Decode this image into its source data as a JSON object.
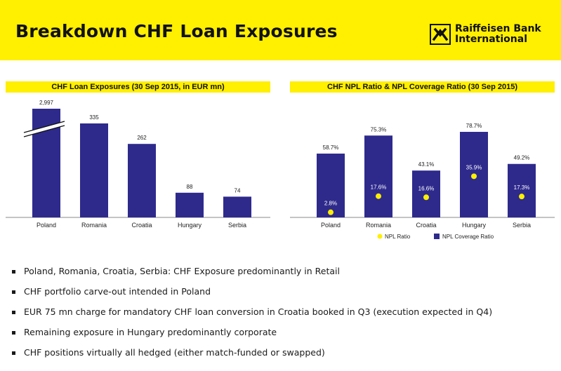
{
  "page": {
    "title": "Breakdown CHF Loan Exposures",
    "logo": {
      "line1": "Raiffeisen Bank",
      "line2": "International"
    }
  },
  "colors": {
    "accent_yellow": "#ffef00",
    "bar_navy": "#2e2a8c",
    "dot_yellow": "#ffef00"
  },
  "chart_data": [
    {
      "type": "bar",
      "title": "CHF Loan Exposures (30 Sep 2015, in EUR mn)",
      "categories": [
        "Poland",
        "Romania",
        "Croatia",
        "Hungary",
        "Serbia"
      ],
      "values": [
        2997,
        335,
        262,
        88,
        74
      ],
      "value_labels": [
        "2,997",
        "335",
        "262",
        "88",
        "74"
      ],
      "axis_break": "Poland",
      "ylabel": "",
      "xlabel": "",
      "grid": false
    },
    {
      "type": "bar",
      "title": "CHF NPL Ratio & NPL Coverage Ratio (30 Sep 2015)",
      "categories": [
        "Poland",
        "Romania",
        "Croatia",
        "Hungary",
        "Serbia"
      ],
      "series": [
        {
          "name": "NPL Coverage Ratio",
          "values": [
            58.7,
            75.3,
            43.1,
            78.7,
            49.2
          ],
          "labels": [
            "58.7%",
            "75.3%",
            "43.1%",
            "78.7%",
            "49.2%"
          ],
          "marker": "bar"
        },
        {
          "name": "NPL Ratio",
          "values": [
            2.8,
            17.6,
            16.6,
            35.9,
            17.3
          ],
          "labels": [
            "2.8%",
            "17.6%",
            "16.6%",
            "35.9%",
            "17.3%"
          ],
          "marker": "dot"
        }
      ],
      "ylim": [
        0,
        100
      ],
      "legend": "bottom",
      "grid": false
    }
  ],
  "bullets": [
    "Poland, Romania, Croatia, Serbia: CHF Exposure predominantly in Retail",
    "CHF portfolio carve-out intended in Poland",
    "EUR 75 mn charge for mandatory CHF loan conversion in Croatia booked in Q3 (execution expected in Q4)",
    "Remaining exposure in Hungary predominantly corporate",
    "CHF positions virtually all hedged (either match-funded or swapped)"
  ]
}
